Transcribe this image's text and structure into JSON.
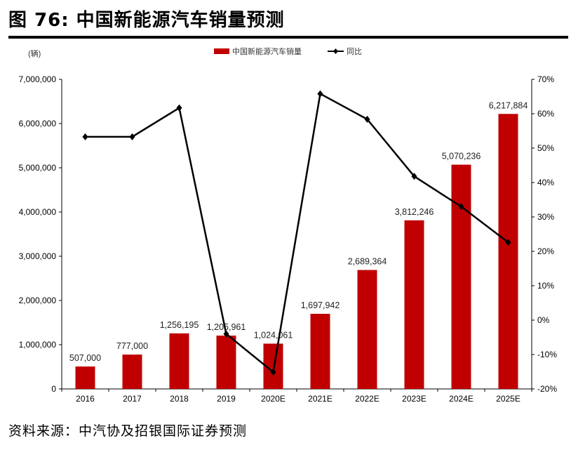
{
  "header": {
    "title": "图 76: 中国新能源汽车销量预测"
  },
  "footer": {
    "source": "资料来源：中汽协及招银国际证券预测"
  },
  "chart_data": {
    "type": "bar+line",
    "title": "",
    "y_unit": "(辆)",
    "categories": [
      "2016",
      "2017",
      "2018",
      "2019",
      "2020E",
      "2021E",
      "2022E",
      "2023E",
      "2024E",
      "2025E"
    ],
    "series": [
      {
        "name": "中国新能源汽车销量",
        "type": "bar",
        "axis": "left",
        "color": "#c00000",
        "values": [
          507000,
          777000,
          1256195,
          1205961,
          1024061,
          1697942,
          2689364,
          3812246,
          5070236,
          6217884
        ],
        "labels": [
          "507,000",
          "777,000",
          "1,256,195",
          "1,205,961",
          "1,024,061",
          "1,697,942",
          "2,689,364",
          "3,812,246",
          "5,070,236",
          "6,217,884"
        ]
      },
      {
        "name": "同比",
        "type": "line",
        "axis": "right",
        "color": "#000000",
        "values": [
          53.3,
          53.3,
          61.7,
          -4.0,
          -15.1,
          65.8,
          58.4,
          41.8,
          33.0,
          22.6
        ]
      }
    ],
    "left_axis": {
      "ylim": [
        0,
        7000000
      ],
      "ticks": [
        "0",
        "1,000,000",
        "2,000,000",
        "3,000,000",
        "4,000,000",
        "5,000,000",
        "6,000,000",
        "7,000,000"
      ]
    },
    "right_axis": {
      "ylim": [
        -20,
        70
      ],
      "ticks": [
        "-20%",
        "-10%",
        "0%",
        "10%",
        "20%",
        "30%",
        "40%",
        "50%",
        "60%",
        "70%"
      ]
    },
    "grid": false,
    "legend": "top-center"
  }
}
